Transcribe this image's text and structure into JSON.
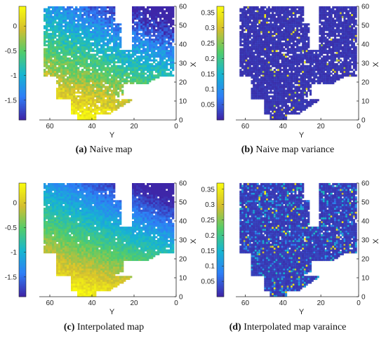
{
  "chart_data": [
    {
      "type": "heatmap",
      "panel": "a",
      "caption_letter": "(a)",
      "caption_text": "Naive map",
      "xlabel": "Y",
      "ylabel": "X",
      "x_ticks": [
        "60",
        "40",
        "20",
        "0"
      ],
      "y_ticks": [
        "0",
        "10",
        "20",
        "30",
        "40",
        "50",
        "60"
      ],
      "colorbar_ticks": [
        "0",
        "-0.5",
        "-1",
        "-1.5"
      ],
      "colorbar_range": [
        -1.9,
        0.4
      ],
      "xlim": [
        65,
        0
      ],
      "ylim": [
        0,
        60
      ],
      "colormap": [
        "#3e26a8",
        "#2e7ef7",
        "#16b6d0",
        "#52cc6b",
        "#d3be30",
        "#f9fb0e"
      ]
    },
    {
      "type": "heatmap",
      "panel": "b",
      "caption_letter": "(b)",
      "caption_text": "Naive map variance",
      "xlabel": "Y",
      "ylabel": "X",
      "x_ticks": [
        "60",
        "40",
        "20",
        "0"
      ],
      "y_ticks": [
        "0",
        "10",
        "20",
        "30",
        "40",
        "50",
        "60"
      ],
      "colorbar_ticks": [
        "0.35",
        "0.3",
        "0.25",
        "0.2",
        "0.15",
        "0.1",
        "0.05"
      ],
      "colorbar_range": [
        0,
        0.37
      ],
      "xlim": [
        65,
        0
      ],
      "ylim": [
        0,
        60
      ],
      "colormap": [
        "#3e26a8",
        "#2e7ef7",
        "#16b6d0",
        "#52cc6b",
        "#d3be30",
        "#f9fb0e"
      ]
    },
    {
      "type": "heatmap",
      "panel": "c",
      "caption_letter": "(c)",
      "caption_text": "Interpolated map",
      "xlabel": "Y",
      "ylabel": "X",
      "x_ticks": [
        "60",
        "40",
        "20",
        "0"
      ],
      "y_ticks": [
        "0",
        "10",
        "20",
        "30",
        "40",
        "50",
        "60"
      ],
      "colorbar_ticks": [
        "0",
        "-0.5",
        "-1",
        "-1.5"
      ],
      "colorbar_range": [
        -1.9,
        0.4
      ],
      "xlim": [
        65,
        0
      ],
      "ylim": [
        0,
        60
      ],
      "colormap": [
        "#3e26a8",
        "#2e7ef7",
        "#16b6d0",
        "#52cc6b",
        "#d3be30",
        "#f9fb0e"
      ]
    },
    {
      "type": "heatmap",
      "panel": "d",
      "caption_letter": "(d)",
      "caption_text": "Interpolated map varaince",
      "xlabel": "Y",
      "ylabel": "X",
      "x_ticks": [
        "60",
        "40",
        "20",
        "0"
      ],
      "y_ticks": [
        "0",
        "10",
        "20",
        "30",
        "40",
        "50",
        "60"
      ],
      "colorbar_ticks": [
        "0.35",
        "0.3",
        "0.25",
        "0.2",
        "0.15",
        "0.1",
        "0.05"
      ],
      "colorbar_range": [
        0,
        0.37
      ],
      "xlim": [
        65,
        0
      ],
      "ylim": [
        0,
        60
      ],
      "colormap": [
        "#3e26a8",
        "#2e7ef7",
        "#16b6d0",
        "#52cc6b",
        "#d3be30",
        "#f9fb0e"
      ]
    }
  ]
}
